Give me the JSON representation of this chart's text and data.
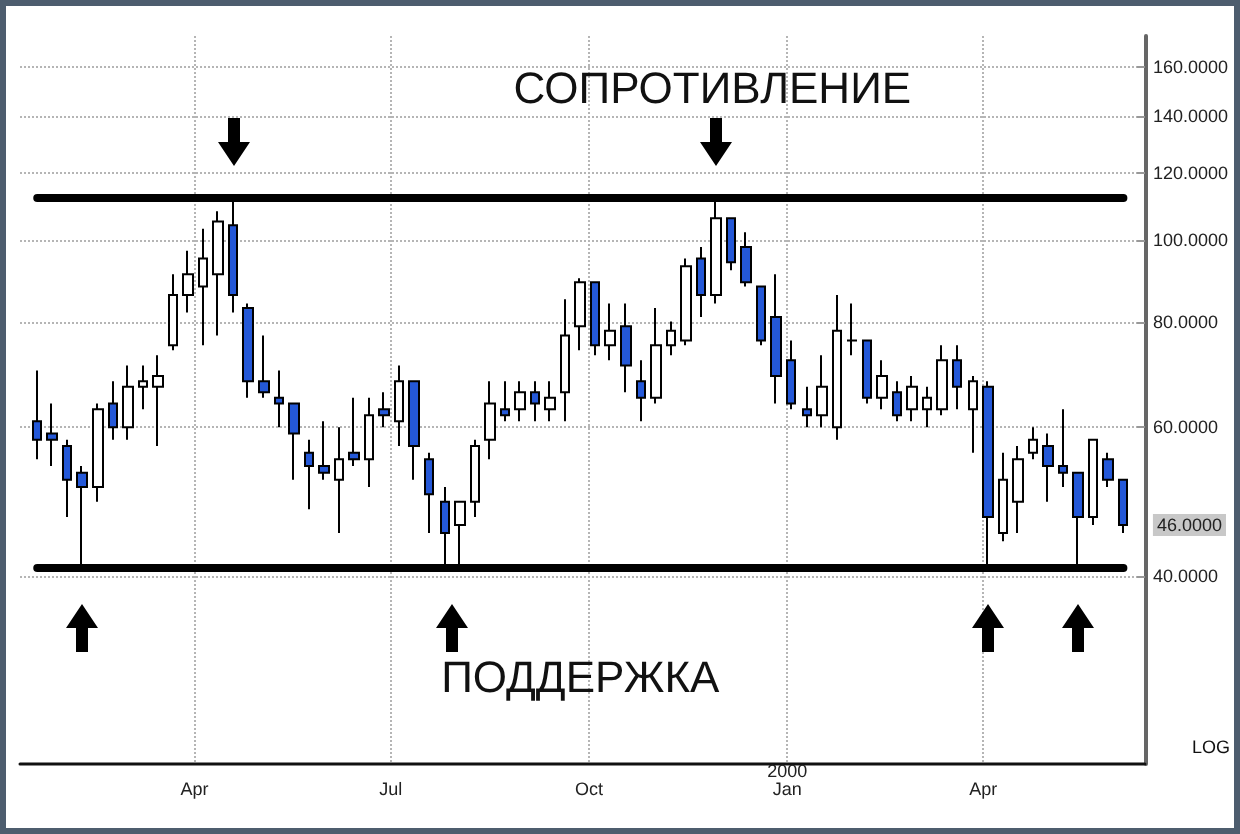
{
  "chart_data": {
    "type": "candlestick",
    "x": [
      "1999-01-18",
      "1999-01-25",
      "1999-02-01",
      "1999-02-08",
      "1999-02-15",
      "1999-02-22",
      "1999-03-01",
      "1999-03-08",
      "1999-03-15",
      "1999-03-22",
      "1999-03-29",
      "1999-04-05",
      "1999-04-12",
      "1999-04-19",
      "1999-04-26",
      "1999-05-03",
      "1999-05-10",
      "1999-05-17",
      "1999-05-24",
      "1999-05-31",
      "1999-06-07",
      "1999-06-14",
      "1999-06-21",
      "1999-06-28",
      "1999-07-05",
      "1999-07-12",
      "1999-07-19",
      "1999-07-26",
      "1999-08-02",
      "1999-08-09",
      "1999-08-16",
      "1999-08-23",
      "1999-08-30",
      "1999-09-06",
      "1999-09-13",
      "1999-09-20",
      "1999-09-27",
      "1999-10-04",
      "1999-10-11",
      "1999-10-18",
      "1999-10-25",
      "1999-11-01",
      "1999-11-08",
      "1999-11-15",
      "1999-11-22",
      "1999-11-29",
      "1999-12-06",
      "1999-12-13",
      "1999-12-20",
      "1999-12-27",
      "2000-01-03",
      "2000-01-10",
      "2000-01-17",
      "2000-01-24",
      "2000-01-31",
      "2000-02-07",
      "2000-02-14",
      "2000-02-21",
      "2000-02-28",
      "2000-03-06",
      "2000-03-13",
      "2000-03-20",
      "2000-03-27",
      "2000-04-03",
      "2000-04-10",
      "2000-04-17",
      "2000-04-24",
      "2000-05-01",
      "2000-05-08",
      "2000-05-15",
      "2000-05-22",
      "2000-05-29",
      "2000-06-05"
    ],
    "ohlc": [
      [
        61,
        70,
        55,
        58
      ],
      [
        59,
        64,
        54,
        58
      ],
      [
        57,
        58,
        47,
        52
      ],
      [
        53,
        54,
        41,
        51
      ],
      [
        51,
        64,
        49,
        63
      ],
      [
        64,
        68,
        58,
        60
      ],
      [
        60,
        71,
        58,
        67
      ],
      [
        67,
        71,
        63,
        68
      ],
      [
        67,
        73,
        57,
        69
      ],
      [
        75,
        91,
        74,
        86
      ],
      [
        86,
        97,
        82,
        91
      ],
      [
        88,
        103,
        75,
        95
      ],
      [
        91,
        108,
        77,
        105
      ],
      [
        104,
        111,
        82,
        86
      ],
      [
        83,
        84,
        65,
        68
      ],
      [
        68,
        77,
        65,
        66
      ],
      [
        65,
        70,
        60,
        64
      ],
      [
        64,
        64,
        52,
        59
      ],
      [
        56,
        58,
        48,
        54
      ],
      [
        54,
        61,
        52,
        53
      ],
      [
        52,
        60,
        45,
        55
      ],
      [
        56,
        65,
        54,
        55
      ],
      [
        55,
        65,
        51,
        62
      ],
      [
        63,
        66,
        60,
        62
      ],
      [
        61,
        71,
        57,
        68
      ],
      [
        68,
        68,
        52,
        57
      ],
      [
        55,
        56,
        45,
        50
      ],
      [
        49,
        51,
        41,
        45
      ],
      [
        46,
        49,
        41,
        49
      ],
      [
        49,
        58,
        47,
        57
      ],
      [
        58,
        68,
        55,
        64
      ],
      [
        63,
        68,
        61,
        62
      ],
      [
        63,
        68,
        61,
        66
      ],
      [
        66,
        68,
        61,
        64
      ],
      [
        63,
        68,
        61,
        65
      ],
      [
        66,
        85,
        61,
        77
      ],
      [
        79,
        90,
        74,
        89
      ],
      [
        89,
        89,
        73,
        75
      ],
      [
        75,
        84,
        72,
        78
      ],
      [
        79,
        84,
        66,
        71
      ],
      [
        68,
        72,
        61,
        65
      ],
      [
        65,
        83,
        64,
        75
      ],
      [
        75,
        80,
        73,
        78
      ],
      [
        76,
        95,
        75,
        93
      ],
      [
        95,
        98,
        81,
        86
      ],
      [
        86,
        112,
        84,
        106
      ],
      [
        106,
        106,
        92,
        94
      ],
      [
        98,
        102,
        88,
        89
      ],
      [
        88,
        88,
        75,
        76
      ],
      [
        81,
        91,
        64,
        69
      ],
      [
        72,
        76,
        63,
        64
      ],
      [
        63,
        67,
        60,
        62
      ],
      [
        62,
        73,
        60,
        67
      ],
      [
        60,
        86,
        58,
        78
      ],
      [
        76,
        84,
        73,
        76
      ],
      [
        76,
        76,
        64,
        65
      ],
      [
        65,
        72,
        63,
        69
      ],
      [
        66,
        68,
        61,
        62
      ],
      [
        63,
        69,
        61,
        67
      ],
      [
        63,
        67,
        60,
        65
      ],
      [
        63,
        75,
        62,
        72
      ],
      [
        72,
        75,
        63,
        67
      ],
      [
        63,
        69,
        56,
        68
      ],
      [
        67,
        68,
        41,
        47
      ],
      [
        45,
        56,
        44,
        52
      ],
      [
        49,
        57,
        45,
        55
      ],
      [
        56,
        60,
        55,
        58
      ],
      [
        57,
        59,
        49,
        54
      ],
      [
        54,
        63,
        51,
        53
      ],
      [
        53,
        53,
        41,
        47
      ],
      [
        47,
        58,
        46,
        58
      ],
      [
        55,
        56,
        51,
        52
      ],
      [
        52,
        52,
        45,
        46
      ]
    ],
    "colors": [
      "#2458d8",
      "#2458d8",
      "#2458d8",
      "#2458d8",
      "#ffffff",
      "#2458d8",
      "#ffffff",
      "#ffffff",
      "#ffffff",
      "#ffffff",
      "#ffffff",
      "#ffffff",
      "#ffffff",
      "#2458d8",
      "#2458d8",
      "#2458d8",
      "#2458d8",
      "#2458d8",
      "#2458d8",
      "#2458d8",
      "#ffffff",
      "#2458d8",
      "#ffffff",
      "#2458d8",
      "#ffffff",
      "#2458d8",
      "#2458d8",
      "#2458d8",
      "#ffffff",
      "#ffffff",
      "#ffffff",
      "#2458d8",
      "#ffffff",
      "#2458d8",
      "#ffffff",
      "#ffffff",
      "#ffffff",
      "#2458d8",
      "#ffffff",
      "#2458d8",
      "#2458d8",
      "#ffffff",
      "#ffffff",
      "#ffffff",
      "#2458d8",
      "#ffffff",
      "#2458d8",
      "#2458d8",
      "#2458d8",
      "#2458d8",
      "#2458d8",
      "#2458d8",
      "#ffffff",
      "#ffffff",
      "#000000",
      "#2458d8",
      "#ffffff",
      "#2458d8",
      "#ffffff",
      "#ffffff",
      "#ffffff",
      "#2458d8",
      "#ffffff",
      "#2458d8",
      "#ffffff",
      "#ffffff",
      "#ffffff",
      "#2458d8",
      "#2458d8",
      "#2458d8",
      "#ffffff",
      "#2458d8",
      "#2458d8"
    ],
    "xlim": [
      "1999-01-10",
      "2000-06-15"
    ],
    "xticks": [
      {
        "value": "1999-04-01",
        "label": "Apr"
      },
      {
        "value": "1999-07-01",
        "label": "Jul"
      },
      {
        "value": "1999-10-01",
        "label": "Oct"
      },
      {
        "value": "2000-01-01",
        "label": "2000\nJan"
      },
      {
        "value": "2000-04-01",
        "label": "Apr"
      }
    ],
    "ylim": [
      24,
      174
    ],
    "yticks": [
      {
        "value": 40,
        "label": "40.0000"
      },
      {
        "value": 46,
        "label": "46.0000"
      },
      {
        "value": 60,
        "label": "60.0000"
      },
      {
        "value": 80,
        "label": "80.0000"
      },
      {
        "value": 100,
        "label": "100.0000"
      },
      {
        "value": 120,
        "label": "120.0000"
      },
      {
        "value": 140,
        "label": "140.0000"
      },
      {
        "value": 160,
        "label": "160.0000"
      }
    ],
    "log": true,
    "grid": true,
    "ref_lines": [
      {
        "axis": "y",
        "value": 112,
        "label": "СОПРОТИВЛЕНИЕ",
        "color": "#000000"
      },
      {
        "axis": "y",
        "value": 41,
        "label": "ПОДДЕРЖКА",
        "color": "#000000"
      }
    ],
    "annotations": [
      "LOG"
    ]
  }
}
